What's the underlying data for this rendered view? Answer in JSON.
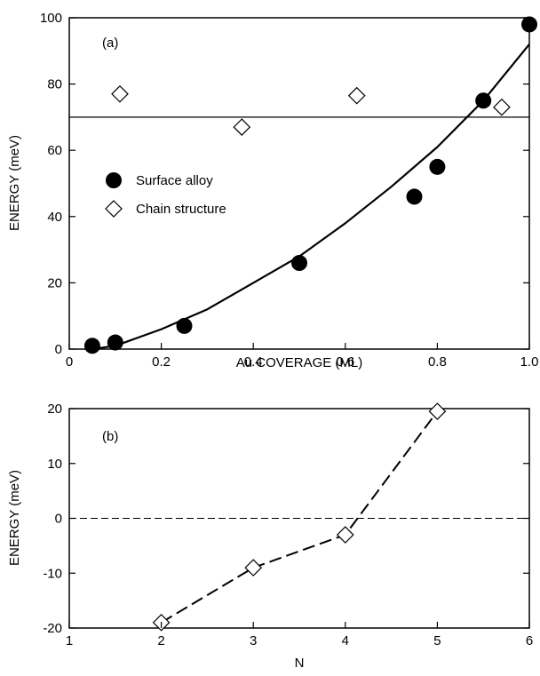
{
  "chart_data": [
    {
      "type": "scatter",
      "panel_label": "(a)",
      "xlabel": "Au COVERAGE (ML)",
      "ylabel": "ENERGY (meV)",
      "xlim": [
        0,
        1.0
      ],
      "ylim": [
        0,
        100
      ],
      "xticks": [
        0,
        0.2,
        0.4,
        0.6,
        0.8,
        1.0
      ],
      "xtick_labels": [
        "0",
        "0.2",
        "0.4",
        "0.6",
        "0.8",
        "1.0"
      ],
      "yticks": [
        0,
        20,
        40,
        60,
        80,
        100
      ],
      "ytick_labels": [
        "0",
        "20",
        "40",
        "60",
        "80",
        "100"
      ],
      "legend_position": "center-left",
      "series": [
        {
          "name": "Surface alloy",
          "marker": "filled-circle",
          "x": [
            0.05,
            0.1,
            0.25,
            0.5,
            0.75,
            0.8,
            0.9,
            1.0
          ],
          "y": [
            1,
            2,
            7,
            26,
            46,
            55,
            75,
            98
          ]
        },
        {
          "name": "Chain structure",
          "marker": "open-diamond",
          "x": [
            0.11,
            0.375,
            0.625,
            0.94
          ],
          "y": [
            77,
            67,
            76.5,
            73
          ]
        }
      ],
      "fit_curve": {
        "style": "solid",
        "x": [
          0.05,
          0.1,
          0.2,
          0.3,
          0.4,
          0.5,
          0.6,
          0.7,
          0.8,
          0.9,
          1.0
        ],
        "y": [
          0,
          1,
          6,
          12,
          20,
          28,
          38,
          49,
          61,
          75,
          92
        ]
      },
      "reference_line": {
        "style": "solid",
        "y": 70
      }
    },
    {
      "type": "line",
      "panel_label": "(b)",
      "xlabel": "N",
      "ylabel": "ENERGY (meV)",
      "xlim": [
        1,
        6
      ],
      "ylim": [
        -20,
        20
      ],
      "xticks": [
        1,
        2,
        3,
        4,
        5,
        6
      ],
      "xtick_labels": [
        "1",
        "2",
        "3",
        "4",
        "5",
        "6"
      ],
      "yticks": [
        -20,
        -10,
        0,
        10,
        20
      ],
      "ytick_labels": [
        "-20",
        "-10",
        "0",
        "10",
        "20"
      ],
      "series": [
        {
          "marker": "open-diamond",
          "line_style": "long-dash",
          "x": [
            2,
            3,
            4,
            5
          ],
          "y": [
            -19,
            -9,
            -3,
            19.5
          ]
        }
      ],
      "reference_line": {
        "style": "dashed",
        "y": 0
      }
    }
  ],
  "colors": {
    "ink": "#000000",
    "background": "#ffffff"
  }
}
